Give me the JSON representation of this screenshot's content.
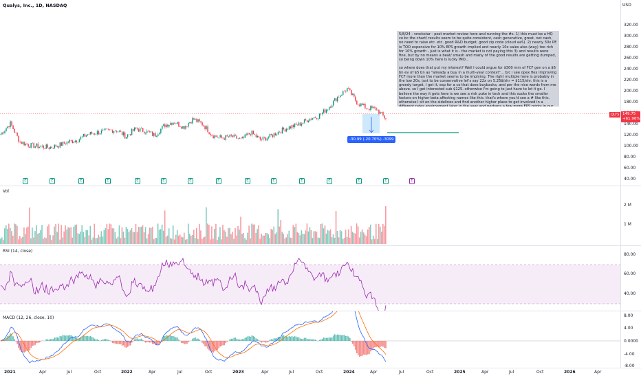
{
  "header": {
    "symbol_title": "Qualys, Inc., 1D, NASDAQ",
    "currency": "USD"
  },
  "price_scale": [
    "320.00",
    "300.00",
    "280.00",
    "260.00",
    "240.00",
    "220.00",
    "200.00",
    "180.00",
    "160.00",
    "140.00",
    "120.00",
    "100.00",
    "80.00",
    "60.00",
    "40.00"
  ],
  "price_tag": {
    "symbol": "QLYS",
    "price": "149.75",
    "change": "+61.96%",
    "color": "#f23645"
  },
  "measure": {
    "label": "-30.99 (-20.70%) -3099"
  },
  "earnings_marker": "E",
  "note": {
    "paragraph1": "5/8/24 - vrockstar - post market review here and running the #s. 1) this must be a HQ co bc the chart/ results seem to be quite consistent, cash generative, great, net cash, no need to raise etc. etc. good R&D budget, good zip code (cloud aaS). 2) nearly 30x PE is TOO expensive for 10% EPS growth implied and nearly 10x sales also (way) too rich for 10% growth - just is what it is - the market is not paying this 3) and results were fine, but by no means a beat/ smash and many of the good results are getting dumped, so being down 10% here is lucky IMO...",
    "paragraph2": "so where does that put my interest? Well I could argue for $300 mm of FCF gen on a $6 bn ev of $5 bn as \"already a buy in a multi-year context\"... b/c i see opex flex improving FCF more than the market seems to be implying. The right multiple here is probably in the low 20s, just to be conservative let's say 22x on 5.25$/shr = $115/shr. this is a greedy target, I get it, esp for a co that does buybacks, and per the nice words from me above. so I get interested sub $125. otherwise I'm going to just have to let it go. I believe the way it gets here is we see a risk puke in tech and this sucks the smaller factors on higher beta affecting names like this. that's where you'd see a # like this. otherwise I sit on the sidelines and find another higher place to get involved in a different rates environment later in the year and perhaps a few more EPS prints in our belt."
  },
  "volume_pane": {
    "label": "Vol",
    "scale": [
      "2 M",
      "1 M"
    ]
  },
  "rsi_pane": {
    "label": "RSI (14, close)",
    "scale": [
      "80.00",
      "60.00",
      "40.00"
    ]
  },
  "macd_pane": {
    "label": "MACD (12, 26, close, 10)",
    "scale": [
      "8.00",
      "4.00",
      "0.0000",
      "-4.00",
      "-8.00"
    ]
  },
  "time_axis": [
    "2021",
    "Apr",
    "Jul",
    "Oct",
    "2022",
    "Apr",
    "Jul",
    "Oct",
    "2023",
    "Apr",
    "Jul",
    "Oct",
    "2024",
    "Apr",
    "Jul",
    "Oct",
    "2025",
    "Apr",
    "Jul",
    "Oct",
    "2026",
    "Apr"
  ],
  "colors": {
    "up": "#089981",
    "down": "#f23645",
    "rsi": "#9c27b0",
    "macd": "#2962ff",
    "signal": "#ff6d00",
    "target_line": "#089981"
  },
  "chart_data": {
    "type": "line",
    "title": "Qualys, Inc., 1D, NASDAQ",
    "x_range": [
      "2021-01",
      "2024-05"
    ],
    "y_range": [
      40,
      320
    ],
    "series": [
      {
        "name": "Qualys, Inc., 1D, NASDAQ",
        "x": [
          "2021-01",
          "2021-02",
          "2021-03",
          "2021-04",
          "2021-05",
          "2021-06",
          "2021-07",
          "2021-08",
          "2021-09",
          "2021-10",
          "2021-11",
          "2021-12",
          "2022-01",
          "2022-02",
          "2022-03",
          "2022-04",
          "2022-05",
          "2022-06",
          "2022-07",
          "2022-08",
          "2022-09",
          "2022-10",
          "2022-11",
          "2022-12",
          "2023-01",
          "2023-02",
          "2023-03",
          "2023-04",
          "2023-05",
          "2023-06",
          "2023-07",
          "2023-08",
          "2023-09",
          "2023-10",
          "2023-11",
          "2023-12",
          "2024-01",
          "2024-02",
          "2024-03",
          "2024-04",
          "2024-05"
        ],
        "values": [
          122,
          142,
          108,
          102,
          100,
          98,
          102,
          108,
          112,
          122,
          125,
          128,
          130,
          118,
          132,
          128,
          120,
          138,
          145,
          135,
          150,
          140,
          120,
          115,
          118,
          112,
          125,
          112,
          118,
          128,
          135,
          140,
          150,
          155,
          170,
          190,
          205,
          180,
          170,
          168,
          150
        ]
      }
    ],
    "annotations": {
      "last_price": 149.75,
      "target_price": 118.76
    }
  }
}
